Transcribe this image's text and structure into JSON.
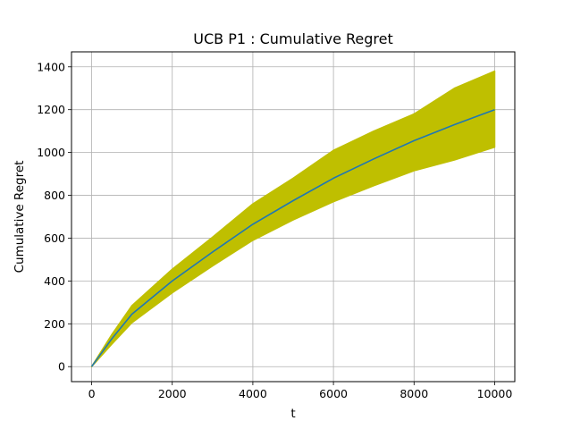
{
  "chart_data": {
    "type": "line",
    "title": "UCB P1 : Cumulative Regret",
    "xlabel": "t",
    "ylabel": "Cumulative Regret",
    "xlim": [
      -500,
      10500
    ],
    "ylim": [
      -70,
      1470
    ],
    "xticks": [
      0,
      2000,
      4000,
      6000,
      8000,
      10000
    ],
    "yticks": [
      0,
      200,
      400,
      600,
      800,
      1000,
      1200,
      1400
    ],
    "grid": true,
    "series": [
      {
        "kind": "mean-line",
        "color": "#1f77b4",
        "x": [
          0,
          500,
          1000,
          2000,
          3000,
          4000,
          5000,
          6000,
          7000,
          8000,
          9000,
          10000
        ],
        "y": [
          0,
          130,
          245,
          400,
          535,
          665,
          775,
          880,
          970,
          1055,
          1130,
          1200
        ]
      },
      {
        "kind": "band",
        "color": "#bfbf00",
        "x": [
          0,
          500,
          1000,
          2000,
          3000,
          4000,
          5000,
          6000,
          7000,
          8000,
          9000,
          10000
        ],
        "upper": [
          0,
          150,
          285,
          455,
          605,
          760,
          880,
          1010,
          1100,
          1180,
          1300,
          1380
        ],
        "lower": [
          0,
          105,
          205,
          345,
          470,
          590,
          685,
          770,
          845,
          915,
          965,
          1025
        ]
      }
    ]
  }
}
